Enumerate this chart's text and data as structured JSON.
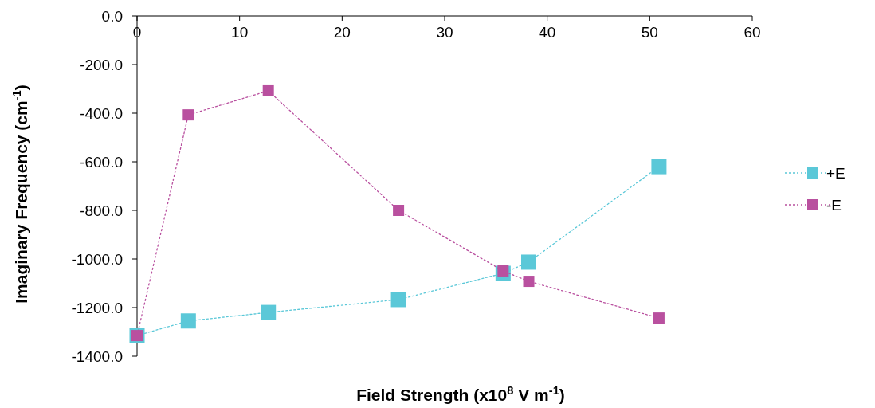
{
  "chart_data": {
    "type": "line",
    "xlabel": "Field Strength (x10$^{8}$ V m$^{-1}$)",
    "ylabel": "Imaginary Frequency (cm$^{-1}$)",
    "xlim": [
      0,
      60
    ],
    "xticks": [
      0,
      10,
      20,
      30,
      40,
      50,
      60
    ],
    "ylim": [
      -1400,
      0
    ],
    "yticks": [
      {
        "value": -1400,
        "label": "-1400.0"
      },
      {
        "value": -1200,
        "label": "-1200.0"
      },
      {
        "value": -1000,
        "label": "-1000.0"
      },
      {
        "value": -800,
        "label": "-800.0"
      },
      {
        "value": -600,
        "label": "-600.0"
      },
      {
        "value": -400,
        "label": "-400.0"
      },
      {
        "value": -200,
        "label": "-200.0"
      },
      {
        "value": 0,
        "label": "0.0"
      }
    ],
    "x": [
      0,
      5,
      12.8,
      25.5,
      35.7,
      38.2,
      50.9
    ],
    "series": [
      {
        "name": "+E",
        "color": "#5bc8d8",
        "values": [
          -1315,
          -1255,
          -1220,
          -1167,
          -1059,
          -1013,
          -620
        ]
      },
      {
        "name": "-E",
        "color": "#b9509f",
        "values": [
          -1315,
          -407,
          -308,
          -800,
          -1049,
          -1092,
          -1243
        ]
      }
    ],
    "marker": "square",
    "line_style": "dotted",
    "legend": "right",
    "grid": false
  }
}
